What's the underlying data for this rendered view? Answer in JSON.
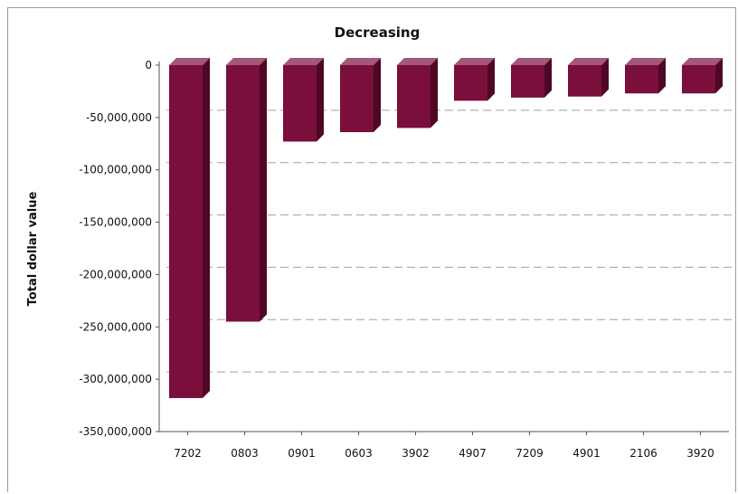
{
  "chart_data": {
    "type": "bar",
    "title": "Decreasing",
    "xlabel": "",
    "ylabel": "Total dollar value",
    "categories": [
      "7202",
      "0803",
      "0901",
      "0603",
      "3902",
      "4907",
      "7209",
      "4901",
      "2106",
      "3920"
    ],
    "values": [
      -318000000,
      -245000000,
      -73000000,
      -64000000,
      -60000000,
      -34000000,
      -31000000,
      -30000000,
      -27000000,
      -27000000
    ],
    "ylim": [
      -350000000,
      0
    ],
    "yticks": [
      0,
      -50000000,
      -100000000,
      -150000000,
      -200000000,
      -250000000,
      -300000000,
      -350000000
    ],
    "ytick_labels": [
      "0",
      "-50,000,000",
      "-100,000,000",
      "-150,000,000",
      "-200,000,000",
      "-250,000,000",
      "-300,000,000",
      "-350,000,000"
    ],
    "grid": "horizontal-dashed",
    "bar_style": "3d",
    "colors": {
      "bar_front": "#7a0f3b",
      "bar_top": "#a3577a",
      "bar_side": "#4e0724",
      "grid": "#a0a0a0",
      "axis": "#555555"
    }
  }
}
